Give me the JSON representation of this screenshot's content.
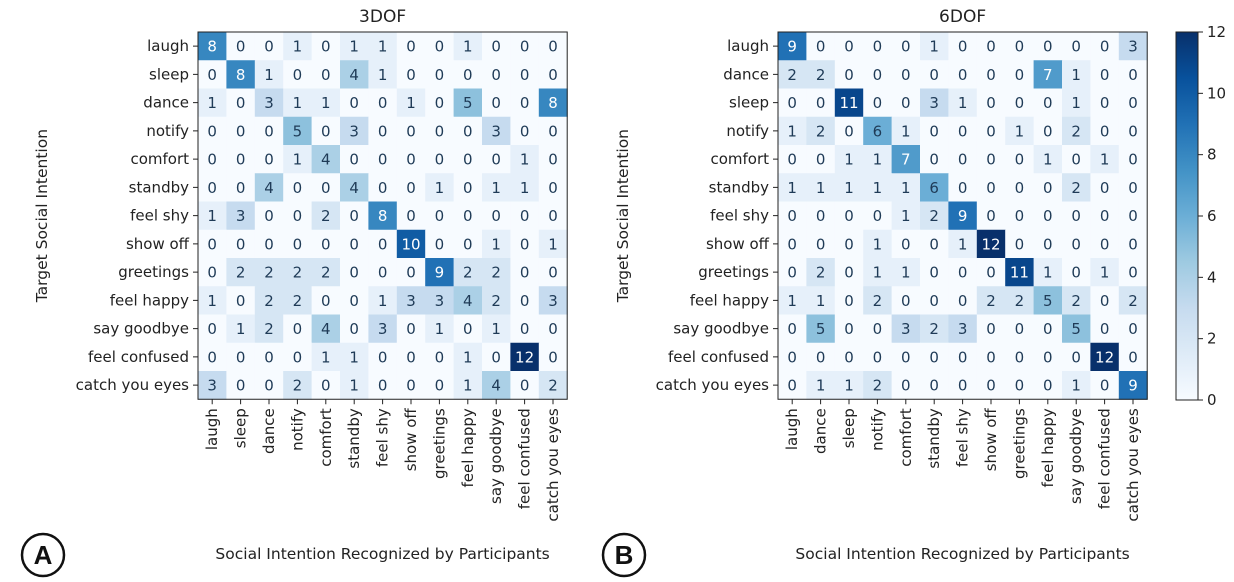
{
  "panel_labels": [
    "A",
    "B"
  ],
  "chart_data": [
    {
      "type": "heatmap",
      "title": "3DOF",
      "xlabel": "Social Intention Recognized by Participants",
      "ylabel": "Target Social Intention",
      "rows": [
        "laugh",
        "sleep",
        "dance",
        "notify",
        "comfort",
        "standby",
        "feel shy",
        "show off",
        "greetings",
        "feel happy",
        "say goodbye",
        "feel confused",
        "catch you eyes"
      ],
      "cols": [
        "laugh",
        "sleep",
        "dance",
        "notify",
        "comfort",
        "standby",
        "feel shy",
        "show off",
        "greetings",
        "feel happy",
        "say goodbye",
        "feel confused",
        "catch you eyes"
      ],
      "values": [
        [
          8,
          0,
          0,
          1,
          0,
          1,
          1,
          0,
          0,
          1,
          0,
          0,
          0
        ],
        [
          0,
          8,
          1,
          0,
          0,
          4,
          1,
          0,
          0,
          0,
          0,
          0,
          0
        ],
        [
          1,
          0,
          3,
          1,
          1,
          0,
          0,
          1,
          0,
          5,
          0,
          0,
          8
        ],
        [
          0,
          0,
          0,
          5,
          0,
          3,
          0,
          0,
          0,
          0,
          3,
          0,
          0
        ],
        [
          0,
          0,
          0,
          1,
          4,
          0,
          0,
          0,
          0,
          0,
          0,
          1,
          0
        ],
        [
          0,
          0,
          4,
          0,
          0,
          4,
          0,
          0,
          1,
          0,
          1,
          1,
          0
        ],
        [
          1,
          3,
          0,
          0,
          2,
          0,
          8,
          0,
          0,
          0,
          0,
          0,
          0
        ],
        [
          0,
          0,
          0,
          0,
          0,
          0,
          0,
          10,
          0,
          0,
          1,
          0,
          1
        ],
        [
          0,
          2,
          2,
          2,
          2,
          0,
          0,
          0,
          9,
          2,
          2,
          0,
          0
        ],
        [
          1,
          0,
          2,
          2,
          0,
          0,
          1,
          3,
          3,
          4,
          2,
          0,
          3
        ],
        [
          0,
          1,
          2,
          0,
          4,
          0,
          3,
          0,
          1,
          0,
          1,
          0,
          0
        ],
        [
          0,
          0,
          0,
          0,
          1,
          1,
          0,
          0,
          0,
          1,
          0,
          12,
          0
        ],
        [
          3,
          0,
          0,
          2,
          0,
          1,
          0,
          0,
          0,
          1,
          4,
          0,
          2
        ]
      ],
      "vmin": 0,
      "vmax": 12
    },
    {
      "type": "heatmap",
      "title": "6DOF",
      "xlabel": "Social Intention Recognized by Participants",
      "ylabel": "Target Social Intention",
      "rows": [
        "laugh",
        "dance",
        "sleep",
        "notify",
        "comfort",
        "standby",
        "feel shy",
        "show off",
        "greetings",
        "feel happy",
        "say goodbye",
        "feel confused",
        "catch you eyes"
      ],
      "cols": [
        "laugh",
        "dance",
        "sleep",
        "notify",
        "comfort",
        "standby",
        "feel shy",
        "show off",
        "greetings",
        "feel happy",
        "say goodbye",
        "feel confused",
        "catch you eyes"
      ],
      "values": [
        [
          9,
          0,
          0,
          0,
          0,
          1,
          0,
          0,
          0,
          0,
          0,
          0,
          3
        ],
        [
          2,
          2,
          0,
          0,
          0,
          0,
          0,
          0,
          0,
          7,
          1,
          0,
          0
        ],
        [
          0,
          0,
          11,
          0,
          0,
          3,
          1,
          0,
          0,
          0,
          1,
          0,
          0
        ],
        [
          1,
          2,
          0,
          6,
          1,
          0,
          0,
          0,
          1,
          0,
          2,
          0,
          0
        ],
        [
          0,
          0,
          1,
          1,
          7,
          0,
          0,
          0,
          0,
          1,
          0,
          1,
          0
        ],
        [
          1,
          1,
          1,
          1,
          1,
          6,
          0,
          0,
          0,
          0,
          2,
          0,
          0
        ],
        [
          0,
          0,
          0,
          0,
          1,
          2,
          9,
          0,
          0,
          0,
          0,
          0,
          0
        ],
        [
          0,
          0,
          0,
          1,
          0,
          0,
          1,
          12,
          0,
          0,
          0,
          0,
          0
        ],
        [
          0,
          2,
          0,
          1,
          1,
          0,
          0,
          0,
          11,
          1,
          0,
          1,
          0
        ],
        [
          1,
          1,
          0,
          2,
          0,
          0,
          0,
          2,
          2,
          5,
          2,
          0,
          2
        ],
        [
          0,
          5,
          0,
          0,
          3,
          2,
          3,
          0,
          0,
          0,
          5,
          0,
          0
        ],
        [
          0,
          0,
          0,
          0,
          0,
          0,
          0,
          0,
          0,
          0,
          0,
          12,
          0
        ],
        [
          0,
          1,
          1,
          2,
          0,
          0,
          0,
          0,
          0,
          0,
          1,
          0,
          9
        ]
      ],
      "vmin": 0,
      "vmax": 12
    }
  ],
  "colorbar": {
    "ticks": [
      0,
      2,
      4,
      6,
      8,
      10,
      12
    ],
    "colormap": "Blues",
    "low_color": "#f7fbff",
    "high_color": "#08306b"
  }
}
